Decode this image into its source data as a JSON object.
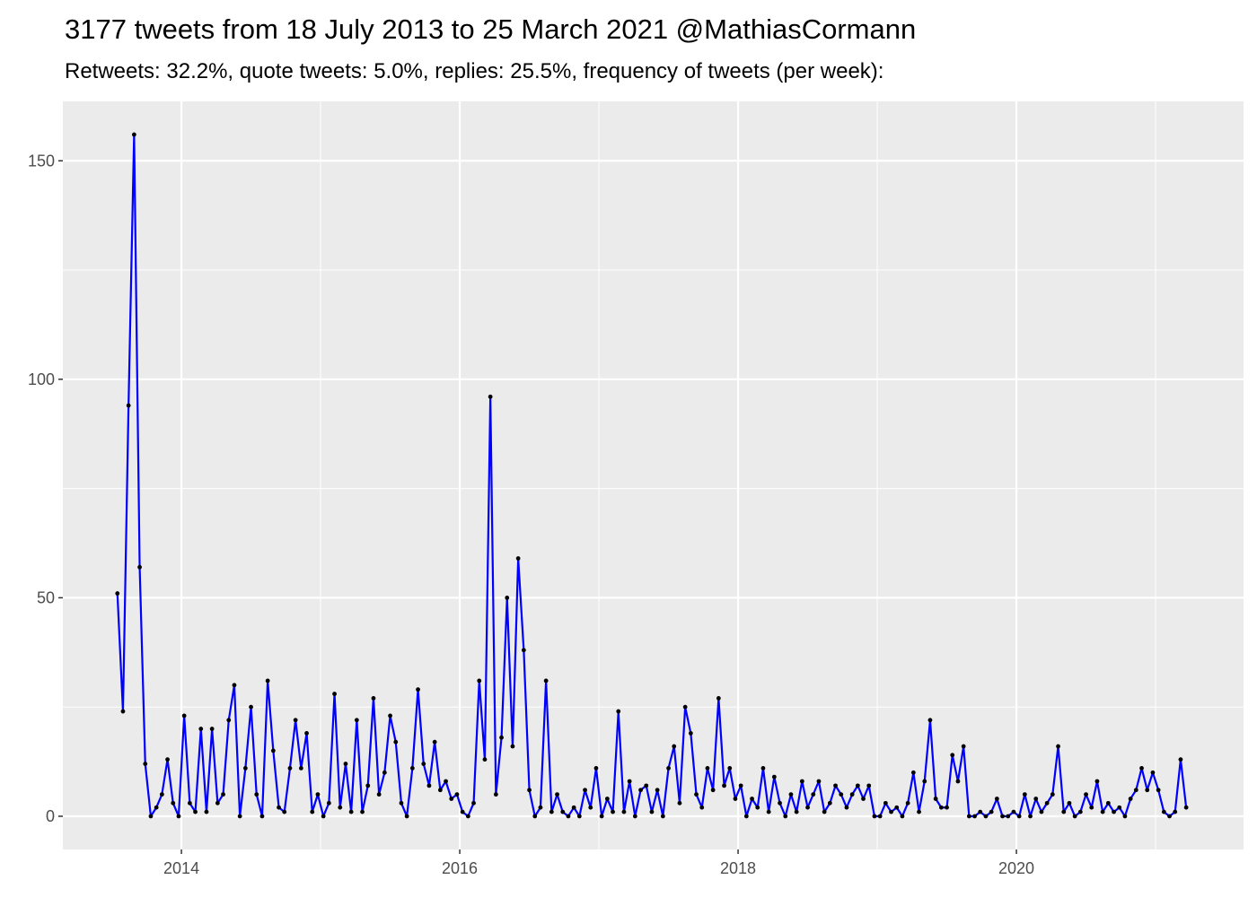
{
  "chart_data": {
    "type": "line",
    "title": "3177 tweets from 18 July 2013 to 25 March 2021 @MathiasCormann",
    "subtitle": "Retweets: 32.2%, quote tweets: 5.0%, replies: 25.5%, frequency of tweets (per week):",
    "x": [
      2013.54,
      2013.58,
      2013.62,
      2013.66,
      2013.7,
      2013.74,
      2013.78,
      2013.82,
      2013.86,
      2013.9,
      2013.94,
      2013.98,
      2014.02,
      2014.06,
      2014.1,
      2014.14,
      2014.18,
      2014.22,
      2014.26,
      2014.3,
      2014.34,
      2014.38,
      2014.42,
      2014.46,
      2014.5,
      2014.54,
      2014.58,
      2014.62,
      2014.66,
      2014.7,
      2014.74,
      2014.78,
      2014.82,
      2014.86,
      2014.9,
      2014.94,
      2014.98,
      2015.02,
      2015.06,
      2015.1,
      2015.14,
      2015.18,
      2015.22,
      2015.26,
      2015.3,
      2015.34,
      2015.38,
      2015.42,
      2015.46,
      2015.5,
      2015.54,
      2015.58,
      2015.62,
      2015.66,
      2015.7,
      2015.74,
      2015.78,
      2015.82,
      2015.86,
      2015.9,
      2015.94,
      2015.98,
      2016.02,
      2016.06,
      2016.1,
      2016.14,
      2016.18,
      2016.22,
      2016.26,
      2016.3,
      2016.34,
      2016.38,
      2016.42,
      2016.46,
      2016.5,
      2016.54,
      2016.58,
      2016.62,
      2016.66,
      2016.7,
      2016.74,
      2016.78,
      2016.82,
      2016.86,
      2016.9,
      2016.94,
      2016.98,
      2017.02,
      2017.06,
      2017.1,
      2017.14,
      2017.18,
      2017.22,
      2017.26,
      2017.3,
      2017.34,
      2017.38,
      2017.42,
      2017.46,
      2017.5,
      2017.54,
      2017.58,
      2017.62,
      2017.66,
      2017.7,
      2017.74,
      2017.78,
      2017.82,
      2017.86,
      2017.9,
      2017.94,
      2017.98,
      2018.02,
      2018.06,
      2018.1,
      2018.14,
      2018.18,
      2018.22,
      2018.26,
      2018.3,
      2018.34,
      2018.38,
      2018.42,
      2018.46,
      2018.5,
      2018.54,
      2018.58,
      2018.62,
      2018.66,
      2018.7,
      2018.74,
      2018.78,
      2018.82,
      2018.86,
      2018.9,
      2018.94,
      2018.98,
      2019.02,
      2019.06,
      2019.1,
      2019.14,
      2019.18,
      2019.22,
      2019.26,
      2019.3,
      2019.34,
      2019.38,
      2019.42,
      2019.46,
      2019.5,
      2019.54,
      2019.58,
      2019.62,
      2019.66,
      2019.7,
      2019.74,
      2019.78,
      2019.82,
      2019.86,
      2019.9,
      2019.94,
      2019.98,
      2020.02,
      2020.06,
      2020.1,
      2020.14,
      2020.18,
      2020.22,
      2020.26,
      2020.3,
      2020.34,
      2020.38,
      2020.42,
      2020.46,
      2020.5,
      2020.54,
      2020.58,
      2020.62,
      2020.66,
      2020.7,
      2020.74,
      2020.78,
      2020.82,
      2020.86,
      2020.9,
      2020.94,
      2020.98,
      2021.02,
      2021.06,
      2021.1,
      2021.14,
      2021.18,
      2021.22
    ],
    "series": [
      {
        "color": "#0000ff",
        "point_color": "#000000",
        "values": [
          51,
          24,
          94,
          156,
          57,
          12,
          0,
          2,
          5,
          13,
          3,
          0,
          23,
          3,
          1,
          20,
          1,
          20,
          3,
          5,
          22,
          30,
          0,
          11,
          25,
          5,
          0,
          31,
          15,
          2,
          1,
          11,
          22,
          11,
          19,
          1,
          5,
          0,
          3,
          28,
          2,
          12,
          1,
          22,
          1,
          7,
          27,
          5,
          10,
          23,
          17,
          3,
          0,
          11,
          29,
          12,
          7,
          17,
          6,
          8,
          4,
          5,
          1,
          0,
          3,
          31,
          13,
          96,
          5,
          18,
          50,
          16,
          59,
          38,
          6,
          0,
          2,
          31,
          1,
          5,
          1,
          0,
          2,
          0,
          6,
          2,
          11,
          0,
          4,
          1,
          24,
          1,
          8,
          0,
          6,
          7,
          1,
          6,
          0,
          11,
          16,
          3,
          25,
          19,
          5,
          2,
          11,
          6,
          27,
          7,
          11,
          4,
          7,
          0,
          4,
          2,
          11,
          1,
          9,
          3,
          0,
          5,
          1,
          8,
          2,
          5,
          8,
          1,
          3,
          7,
          5,
          2,
          5,
          7,
          4,
          7,
          0,
          0,
          3,
          1,
          2,
          0,
          3,
          10,
          1,
          8,
          22,
          4,
          2,
          2,
          14,
          8,
          16,
          0,
          0,
          1,
          0,
          1,
          4,
          0,
          0,
          1,
          0,
          5,
          0,
          4,
          1,
          3,
          5,
          16,
          1,
          3,
          0,
          1,
          5,
          2,
          8,
          1,
          3,
          1,
          2,
          0,
          4,
          6,
          11,
          6,
          10,
          6,
          1,
          0,
          1,
          13,
          2
        ]
      }
    ],
    "xlim": [
      2013.148,
      2021.632
    ],
    "xticks": [
      2014,
      2016,
      2018,
      2020
    ],
    "ylim": [
      -7.6,
      163.6
    ],
    "yticks": [
      0,
      50,
      100,
      150
    ],
    "grid": true
  }
}
